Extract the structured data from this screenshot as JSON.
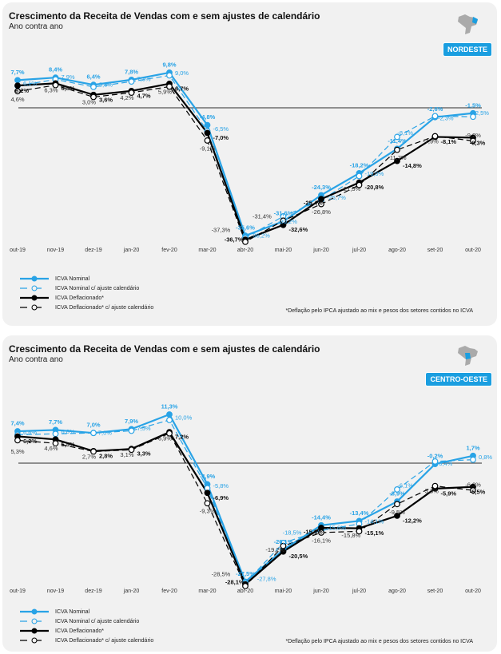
{
  "colors": {
    "nominal": "#29a3e6",
    "deflated": "#000000",
    "panel": "#f1f1f1"
  },
  "legend": [
    "ICVA Nominal",
    "ICVA Nominal c/ ajuste calendário",
    "ICVA Deflacionado*",
    "ICVA Deflacionado* c/ ajuste calendário"
  ],
  "note": "*Deflação pelo IPCA ajustado ao mix e pesos dos setores contidos no ICVA",
  "chart_data": [
    {
      "type": "line",
      "title": "Crescimento da Receita de Vendas com e sem ajustes de calendário",
      "subtitle": "Ano contra ano",
      "region": "NORDESTE",
      "region_icon": "brazil-map-icon",
      "categories": [
        "out-19",
        "nov-19",
        "dez-19",
        "jan-20",
        "fev-20",
        "mar-20",
        "abr-20",
        "mai-20",
        "jun-20",
        "jul-20",
        "ago-20",
        "set-20",
        "out-20"
      ],
      "series": [
        {
          "name": "ICVA Nominal",
          "values": [
            7.7,
            8.4,
            6.4,
            7.8,
            9.8,
            -4.8,
            -35.6,
            -31.6,
            -24.3,
            -18.2,
            -11.4,
            -2.6,
            -1.5
          ]
        },
        {
          "name": "ICVA Nominal c/ ajuste calendário",
          "values": [
            6.1,
            7.9,
            5.8,
            7.3,
            9.0,
            -6.5,
            -36.2,
            -30.2,
            -25.7,
            -19.0,
            -8.1,
            -2.3,
            -2.5
          ]
        },
        {
          "name": "ICVA Deflacionado*",
          "values": [
            6.2,
            6.8,
            3.6,
            4.7,
            6.7,
            -7.0,
            -36.7,
            -32.6,
            -25.4,
            -20.8,
            -14.8,
            -8.1,
            -8.3
          ]
        },
        {
          "name": "ICVA Deflacionado* c/ ajuste calendário",
          "values": [
            4.6,
            6.3,
            3.0,
            4.2,
            5.9,
            -9.1,
            -37.3,
            -31.4,
            -26.8,
            -21.5,
            -11.7,
            -7.9,
            -9.2
          ]
        }
      ]
    },
    {
      "type": "line",
      "title": "Crescimento da Receita de Vendas com e sem ajustes de calendário",
      "subtitle": "Ano contra ano",
      "region": "CENTRO-OESTE",
      "region_icon": "brazil-map-icon",
      "categories": [
        "out-19",
        "nov-19",
        "dez-19",
        "jan-20",
        "fev-20",
        "mar-20",
        "abr-20",
        "mai-20",
        "jun-20",
        "jul-20",
        "ago-20",
        "set-20",
        "out-20"
      ],
      "series": [
        {
          "name": "ICVA Nominal",
          "values": [
            7.4,
            7.7,
            7.0,
            7.9,
            11.3,
            -4.9,
            -27.5,
            -20.1,
            -14.4,
            -13.4,
            -8.9,
            -0.2,
            1.7
          ]
        },
        {
          "name": "ICVA Nominal c/ ajuste calendário",
          "values": [
            6.6,
            6.8,
            7.0,
            7.5,
            10.0,
            -5.8,
            -27.8,
            -18.5,
            -15.6,
            -14.1,
            -6.1,
            0.4,
            0.8
          ]
        },
        {
          "name": "ICVA Deflacionado*",
          "values": [
            6.2,
            5.5,
            2.8,
            3.3,
            7.2,
            -6.9,
            -28.1,
            -20.5,
            -15.0,
            -15.1,
            -12.2,
            -5.9,
            -5.5
          ]
        },
        {
          "name": "ICVA Deflacionado* c/ ajuste calendário",
          "values": [
            5.3,
            4.6,
            2.7,
            3.1,
            6.9,
            -9.3,
            -28.5,
            -19.2,
            -16.1,
            -15.8,
            -9.5,
            -5.3,
            -6.3
          ]
        }
      ]
    }
  ]
}
